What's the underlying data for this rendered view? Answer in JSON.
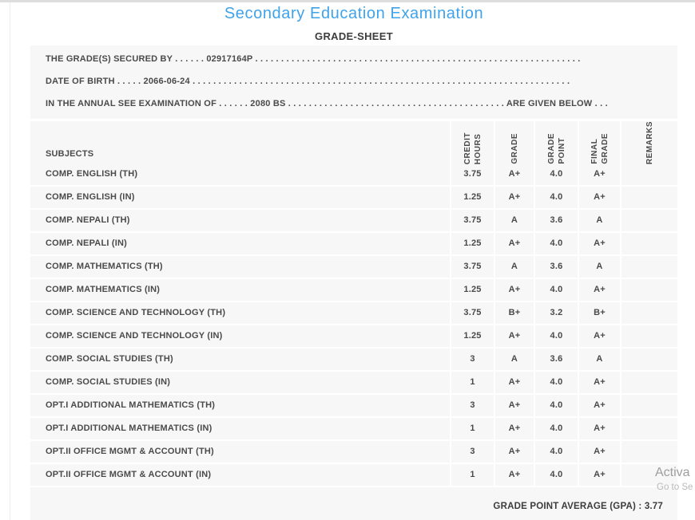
{
  "header": {
    "title": "Secondary Education Examination",
    "subtitle": "GRADE-SHEET"
  },
  "info_lines": [
    "THE GRADE(S) SECURED BY . . . . . . 02917164P . . . . . . . . . . . . . . . . . . . . . . . . . . . . . . . . . . . . . . . . . . . . . . . . . . . . . . . . . . . . . . .",
    "DATE OF BIRTH . . . . . 2066-06-24 . . . . . . . . . . . . . . . . . . . . . . . . . . . . . . . . . . . . . . . . . . . . . . . . . . . . . . . . . . . . . . . . . . . . . . . . .",
    "IN THE ANNUAL SEE EXAMINATION OF . . . . . . 2080 BS . . . . . . . . . . . . . . . . . . . . . . . . . . . . . . . . . . . . . . . . . . ARE GIVEN BELOW . . ."
  ],
  "table": {
    "headers": [
      {
        "label": "SUBJECTS"
      },
      {
        "label": "CREDIT\nHOURS"
      },
      {
        "label": "GRADE"
      },
      {
        "label": "GRADE\nPOINT"
      },
      {
        "label": "FINAL\nGRADE"
      },
      {
        "label": "REMARKS"
      }
    ],
    "rows": [
      {
        "subject": "COMP. ENGLISH (TH)",
        "credit_hours": "3.75",
        "grade": "A+",
        "grade_point": "4.0",
        "final_grade": "A+",
        "remarks": ""
      },
      {
        "subject": "COMP. ENGLISH (IN)",
        "credit_hours": "1.25",
        "grade": "A+",
        "grade_point": "4.0",
        "final_grade": "A+",
        "remarks": ""
      },
      {
        "subject": "COMP. NEPALI (TH)",
        "credit_hours": "3.75",
        "grade": "A",
        "grade_point": "3.6",
        "final_grade": "A",
        "remarks": ""
      },
      {
        "subject": "COMP. NEPALI (IN)",
        "credit_hours": "1.25",
        "grade": "A+",
        "grade_point": "4.0",
        "final_grade": "A+",
        "remarks": ""
      },
      {
        "subject": "COMP. MATHEMATICS (TH)",
        "credit_hours": "3.75",
        "grade": "A",
        "grade_point": "3.6",
        "final_grade": "A",
        "remarks": ""
      },
      {
        "subject": "COMP. MATHEMATICS (IN)",
        "credit_hours": "1.25",
        "grade": "A+",
        "grade_point": "4.0",
        "final_grade": "A+",
        "remarks": ""
      },
      {
        "subject": "COMP. SCIENCE AND TECHNOLOGY (TH)",
        "credit_hours": "3.75",
        "grade": "B+",
        "grade_point": "3.2",
        "final_grade": "B+",
        "remarks": ""
      },
      {
        "subject": "COMP. SCIENCE AND TECHNOLOGY (IN)",
        "credit_hours": "1.25",
        "grade": "A+",
        "grade_point": "4.0",
        "final_grade": "A+",
        "remarks": ""
      },
      {
        "subject": "COMP. SOCIAL STUDIES (TH)",
        "credit_hours": "3",
        "grade": "A",
        "grade_point": "3.6",
        "final_grade": "A",
        "remarks": ""
      },
      {
        "subject": "COMP. SOCIAL STUDIES (IN)",
        "credit_hours": "1",
        "grade": "A+",
        "grade_point": "4.0",
        "final_grade": "A+",
        "remarks": ""
      },
      {
        "subject": "OPT.I ADDITIONAL MATHEMATICS (TH)",
        "credit_hours": "3",
        "grade": "A+",
        "grade_point": "4.0",
        "final_grade": "A+",
        "remarks": ""
      },
      {
        "subject": "OPT.I ADDITIONAL MATHEMATICS (IN)",
        "credit_hours": "1",
        "grade": "A+",
        "grade_point": "4.0",
        "final_grade": "A+",
        "remarks": ""
      },
      {
        "subject": "OPT.II OFFICE MGMT & ACCOUNT (TH)",
        "credit_hours": "3",
        "grade": "A+",
        "grade_point": "4.0",
        "final_grade": "A+",
        "remarks": ""
      },
      {
        "subject": "OPT.II OFFICE MGMT & ACCOUNT (IN)",
        "credit_hours": "1",
        "grade": "A+",
        "grade_point": "4.0",
        "final_grade": "A+",
        "remarks": ""
      }
    ]
  },
  "summary": {
    "gpa_text": "GRADE POINT AVERAGE (GPA) : 3.77"
  },
  "watermark": {
    "line1": "Activa",
    "line2": "Go to Se"
  },
  "colors": {
    "accent_blue": "#3FA3EB",
    "row_background": "#F7F7F8",
    "text": "#4A4A4A",
    "watermark_primary": "#9E9E9E",
    "watermark_secondary": "#B9B9B9"
  }
}
